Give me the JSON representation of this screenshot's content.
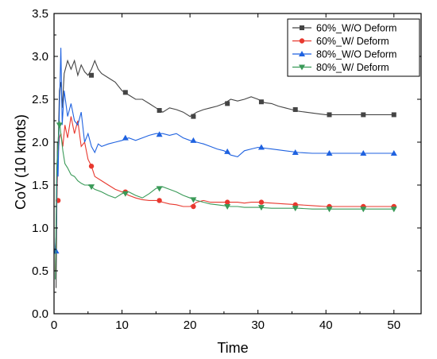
{
  "chart_data": {
    "type": "line",
    "xlabel": "Time",
    "ylabel": "CoV (10 knots)",
    "xlim": [
      0,
      54
    ],
    "ylim": [
      0.0,
      3.5
    ],
    "xticks": [
      "0",
      "10",
      "20",
      "30",
      "40",
      "50"
    ],
    "yticks": [
      "0.0",
      "0.5",
      "1.0",
      "1.5",
      "2.0",
      "2.5",
      "3.0",
      "3.5"
    ],
    "grid": false,
    "legend_position": "top-right",
    "series": [
      {
        "name": "60%_W/O Deform",
        "color": "#444444",
        "marker": "square",
        "x": [
          0.3,
          0.5,
          0.6,
          0.8,
          1.0,
          1.2,
          1.5,
          2.0,
          2.5,
          3.0,
          3.5,
          4.0,
          4.5,
          5.0,
          5.5,
          6.0,
          6.5,
          7.0,
          8.0,
          9.0,
          10.0,
          11.0,
          12.0,
          13.0,
          14.0,
          15.0,
          16.0,
          17.0,
          18.0,
          19.0,
          20.0,
          21.0,
          22.0,
          23.0,
          24.0,
          25.0,
          26.0,
          27.0,
          28.0,
          29.0,
          30.0,
          31.0,
          32.0,
          33.0,
          34.0,
          35.0,
          36.0,
          37.0,
          38.0,
          39.0,
          40.0,
          41.0,
          45.0,
          50.0
        ],
        "y": [
          0.3,
          2.0,
          1.9,
          2.6,
          2.7,
          2.4,
          2.8,
          2.95,
          2.85,
          2.95,
          2.78,
          2.9,
          2.82,
          2.78,
          2.85,
          2.95,
          2.85,
          2.8,
          2.75,
          2.7,
          2.6,
          2.55,
          2.5,
          2.5,
          2.45,
          2.4,
          2.35,
          2.4,
          2.38,
          2.35,
          2.3,
          2.35,
          2.38,
          2.4,
          2.42,
          2.45,
          2.5,
          2.48,
          2.5,
          2.53,
          2.5,
          2.46,
          2.45,
          2.42,
          2.4,
          2.38,
          2.36,
          2.35,
          2.34,
          2.33,
          2.32,
          2.32,
          2.32,
          2.32
        ],
        "marker_x": [
          5.5,
          10.5,
          15.5,
          20.5,
          25.5,
          30.5,
          35.5,
          40.5,
          45.5,
          50.0
        ],
        "marker_y": [
          2.78,
          2.58,
          2.37,
          2.3,
          2.45,
          2.47,
          2.38,
          2.32,
          2.32,
          2.32
        ]
      },
      {
        "name": "60%_W/ Deform",
        "color": "#e8382e",
        "marker": "circle",
        "x": [
          0.2,
          0.4,
          0.6,
          0.8,
          1.0,
          1.3,
          1.6,
          2.0,
          2.5,
          3.0,
          3.5,
          4.0,
          4.5,
          5.0,
          5.5,
          6.0,
          7.0,
          8.0,
          9.0,
          10.0,
          11.0,
          12.0,
          13.0,
          14.0,
          15.0,
          16.0,
          17.0,
          18.0,
          19.0,
          20.0,
          21.0,
          22.0,
          23.0,
          24.0,
          25.0,
          26.0,
          27.0,
          28.0,
          29.0,
          30.0,
          32.0,
          34.0,
          36.0,
          38.0,
          40.0,
          45.0,
          50.0
        ],
        "y": [
          0.5,
          1.3,
          1.85,
          2.05,
          2.1,
          1.95,
          2.2,
          2.05,
          2.3,
          2.1,
          2.25,
          1.95,
          2.0,
          1.8,
          1.72,
          1.6,
          1.55,
          1.5,
          1.45,
          1.42,
          1.38,
          1.35,
          1.33,
          1.32,
          1.32,
          1.3,
          1.28,
          1.27,
          1.25,
          1.25,
          1.3,
          1.32,
          1.3,
          1.3,
          1.3,
          1.3,
          1.3,
          1.29,
          1.3,
          1.3,
          1.29,
          1.28,
          1.27,
          1.26,
          1.25,
          1.25,
          1.25
        ],
        "marker_x": [
          0.6,
          5.5,
          10.5,
          15.5,
          20.5,
          25.5,
          30.5,
          35.5,
          40.5,
          45.5,
          50.0
        ],
        "marker_y": [
          1.32,
          1.72,
          1.42,
          1.32,
          1.25,
          1.3,
          1.3,
          1.27,
          1.25,
          1.25,
          1.25
        ]
      },
      {
        "name": "80%_W/O Deform",
        "color": "#1f62e0",
        "marker": "triangle-up",
        "x": [
          0.1,
          0.3,
          0.5,
          0.6,
          0.8,
          1.0,
          1.2,
          1.5,
          2.0,
          2.5,
          3.0,
          3.5,
          4.0,
          4.5,
          5.0,
          5.5,
          6.0,
          6.5,
          7.0,
          8.0,
          9.0,
          10.0,
          11.0,
          12.0,
          13.0,
          14.0,
          15.0,
          16.0,
          17.0,
          18.0,
          19.0,
          20.0,
          21.0,
          22.0,
          23.0,
          24.0,
          25.0,
          26.0,
          27.0,
          28.0,
          29.0,
          30.0,
          32.0,
          34.0,
          36.0,
          38.0,
          40.0,
          45.0,
          50.0
        ],
        "y": [
          0.7,
          0.9,
          1.9,
          1.6,
          2.4,
          3.1,
          2.2,
          2.6,
          2.3,
          2.45,
          2.25,
          2.2,
          2.35,
          2.0,
          2.1,
          1.95,
          1.88,
          1.98,
          1.95,
          1.98,
          2.0,
          2.02,
          2.05,
          2.02,
          2.05,
          2.08,
          2.1,
          2.1,
          2.08,
          2.1,
          2.05,
          2.02,
          2.0,
          1.98,
          1.95,
          1.92,
          1.9,
          1.85,
          1.83,
          1.9,
          1.92,
          1.94,
          1.92,
          1.9,
          1.88,
          1.87,
          1.87,
          1.87,
          1.87
        ],
        "marker_x": [
          0.3,
          10.5,
          15.5,
          20.5,
          25.5,
          30.5,
          35.5,
          40.5,
          45.5,
          50.0
        ],
        "marker_y": [
          0.73,
          2.05,
          2.09,
          2.02,
          1.89,
          1.94,
          1.88,
          1.87,
          1.87,
          1.87
        ]
      },
      {
        "name": "80%_W/ Deform",
        "color": "#3a9a58",
        "marker": "triangle-down",
        "x": [
          0.2,
          0.4,
          0.6,
          0.8,
          1.0,
          1.3,
          1.6,
          2.0,
          2.5,
          3.0,
          3.5,
          4.0,
          4.5,
          5.0,
          5.5,
          6.0,
          7.0,
          8.0,
          9.0,
          10.0,
          11.0,
          12.0,
          13.0,
          14.0,
          15.0,
          16.0,
          17.0,
          18.0,
          19.0,
          20.0,
          21.0,
          22.0,
          23.0,
          24.0,
          25.0,
          26.0,
          27.0,
          28.0,
          29.0,
          30.0,
          32.0,
          34.0,
          36.0,
          38.0,
          40.0,
          45.0,
          50.0
        ],
        "y": [
          0.4,
          1.7,
          2.0,
          2.25,
          2.1,
          1.9,
          1.75,
          1.7,
          1.62,
          1.6,
          1.55,
          1.52,
          1.5,
          1.5,
          1.48,
          1.45,
          1.42,
          1.38,
          1.35,
          1.4,
          1.42,
          1.38,
          1.35,
          1.4,
          1.46,
          1.48,
          1.45,
          1.42,
          1.38,
          1.35,
          1.32,
          1.3,
          1.28,
          1.27,
          1.26,
          1.25,
          1.25,
          1.24,
          1.24,
          1.24,
          1.23,
          1.23,
          1.23,
          1.22,
          1.22,
          1.22,
          1.22
        ],
        "marker_x": [
          0.8,
          5.5,
          10.5,
          15.5,
          20.5,
          25.5,
          30.5,
          35.5,
          40.5,
          45.5,
          50.0
        ],
        "marker_y": [
          2.2,
          1.48,
          1.4,
          1.46,
          1.33,
          1.25,
          1.24,
          1.23,
          1.22,
          1.22,
          1.22
        ]
      }
    ]
  }
}
